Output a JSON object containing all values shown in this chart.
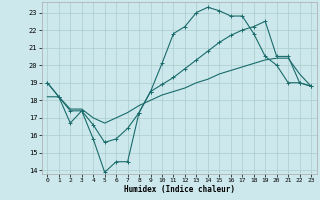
{
  "xlabel": "Humidex (Indice chaleur)",
  "bg_color": "#cce8ec",
  "grid_color": "#aacccc",
  "line_color": "#1a6b6b",
  "xlim": [
    -0.5,
    23.5
  ],
  "ylim": [
    13.8,
    23.6
  ],
  "yticks": [
    14,
    15,
    16,
    17,
    18,
    19,
    20,
    21,
    22,
    23
  ],
  "xticks": [
    0,
    1,
    2,
    3,
    4,
    5,
    6,
    7,
    8,
    9,
    10,
    11,
    12,
    13,
    14,
    15,
    16,
    17,
    18,
    19,
    20,
    21,
    22,
    23
  ],
  "line1_x": [
    0,
    1,
    2,
    3,
    4,
    5,
    6,
    7,
    8,
    9,
    10,
    11,
    12,
    13,
    14,
    15,
    16,
    17,
    18,
    19,
    20,
    21,
    22,
    23
  ],
  "line1_y": [
    19.0,
    18.2,
    16.7,
    17.4,
    15.8,
    13.9,
    14.5,
    14.5,
    17.3,
    18.5,
    20.1,
    21.8,
    22.2,
    23.0,
    23.3,
    23.1,
    22.8,
    22.8,
    21.8,
    20.5,
    20.0,
    19.0,
    19.0,
    18.8
  ],
  "line2_x": [
    0,
    1,
    2,
    3,
    4,
    5,
    6,
    7,
    8,
    9,
    10,
    11,
    12,
    13,
    14,
    15,
    16,
    17,
    18,
    19,
    20,
    21,
    22,
    23
  ],
  "line2_y": [
    19.0,
    18.2,
    17.4,
    17.4,
    16.6,
    15.6,
    15.8,
    16.4,
    17.3,
    18.5,
    18.9,
    19.3,
    19.8,
    20.3,
    20.8,
    21.3,
    21.7,
    22.0,
    22.2,
    22.5,
    20.5,
    20.5,
    19.0,
    18.8
  ],
  "line3_x": [
    0,
    1,
    2,
    3,
    4,
    5,
    6,
    7,
    8,
    9,
    10,
    11,
    12,
    13,
    14,
    15,
    16,
    17,
    18,
    19,
    20,
    21,
    22,
    23
  ],
  "line3_y": [
    18.2,
    18.2,
    17.5,
    17.5,
    17.0,
    16.7,
    17.0,
    17.3,
    17.7,
    18.0,
    18.3,
    18.5,
    18.7,
    19.0,
    19.2,
    19.5,
    19.7,
    19.9,
    20.1,
    20.3,
    20.4,
    20.4,
    19.5,
    18.8
  ]
}
